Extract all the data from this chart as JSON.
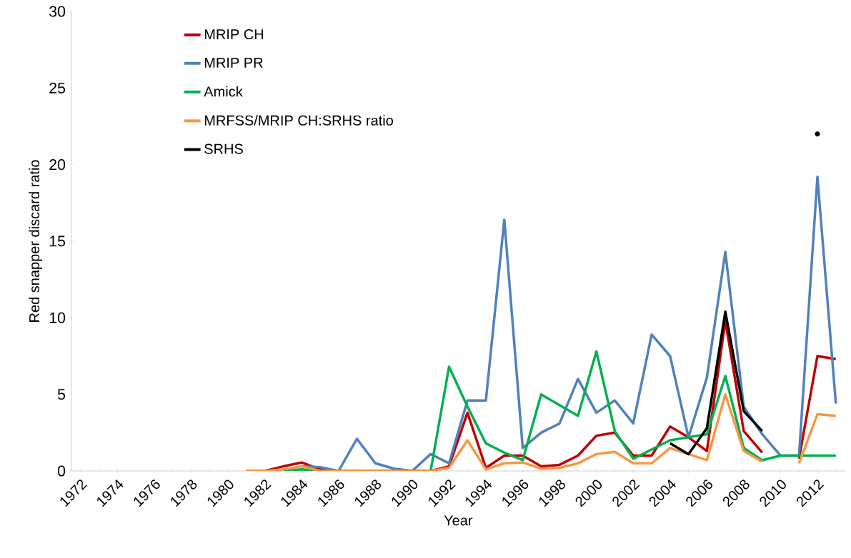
{
  "chart_data": {
    "type": "line",
    "xlabel": "Year",
    "ylabel": "Red snapper discard ratio",
    "categories": [
      "1972",
      null,
      "1974",
      null,
      "1976",
      null,
      "1978",
      null,
      "1980",
      null,
      "1982",
      null,
      "1984",
      null,
      "1986",
      null,
      "1988",
      null,
      "1990",
      null,
      "1992",
      null,
      "1994",
      null,
      "1996",
      null,
      "1998",
      null,
      "2000",
      null,
      "2002",
      null,
      "2004",
      null,
      "2006",
      null,
      "2008",
      null,
      "2010",
      null,
      "2012",
      null
    ],
    "ylim": [
      0,
      30
    ],
    "yticks": [
      0,
      5,
      10,
      15,
      20,
      25,
      30
    ],
    "grid": false,
    "legend": "top left",
    "marker": "none",
    "line_style": "solid",
    "series": [
      {
        "name": "MRIP CH",
        "color": "#c00000",
        "values": [
          null,
          null,
          null,
          null,
          null,
          null,
          null,
          null,
          null,
          0,
          0,
          0.3,
          0.55,
          0.1,
          0,
          0,
          0,
          0,
          0,
          0,
          0.3,
          3.8,
          0.2,
          1.0,
          1.0,
          0.3,
          0.4,
          1.0,
          2.3,
          2.5,
          1.0,
          1.0,
          2.9,
          2.2,
          1.3,
          9.8,
          2.6,
          1.2,
          null,
          0.8,
          7.5,
          7.3
        ]
      },
      {
        "name": "MRIP PR",
        "color": "#4f81bd",
        "values": [
          null,
          null,
          null,
          null,
          null,
          null,
          null,
          null,
          null,
          null,
          null,
          null,
          0.3,
          0.25,
          0,
          2.1,
          0.5,
          0.15,
          0,
          1.1,
          0.5,
          4.6,
          4.6,
          16.4,
          1.5,
          2.5,
          3.1,
          6.0,
          3.8,
          4.6,
          3.1,
          8.9,
          7.5,
          2.2,
          6.1,
          14.3,
          4.2,
          2.4,
          1.0,
          1.0,
          19.2,
          4.4
        ]
      },
      {
        "name": "Amick",
        "color": "#00b050",
        "values": [
          null,
          null,
          null,
          null,
          null,
          null,
          null,
          null,
          null,
          null,
          null,
          0,
          0.1,
          0,
          0,
          0,
          0,
          0,
          0,
          0,
          6.8,
          4.2,
          1.8,
          1.2,
          0.7,
          5.0,
          4.3,
          3.6,
          7.8,
          2.6,
          0.8,
          1.4,
          2.0,
          2.2,
          2.4,
          6.2,
          1.5,
          0.7,
          1.0,
          1.0,
          1.0,
          1.0
        ]
      },
      {
        "name": "MRFSS/MRIP CH:SRHS ratio",
        "color": "#f79646",
        "values": [
          null,
          null,
          null,
          null,
          null,
          null,
          null,
          null,
          null,
          0,
          0,
          0.1,
          0.3,
          0,
          0,
          0,
          0,
          0,
          0,
          0,
          0.2,
          2.0,
          0.1,
          0.5,
          0.55,
          0.15,
          0.2,
          0.5,
          1.1,
          1.25,
          0.5,
          0.5,
          1.5,
          1.1,
          0.7,
          5.0,
          1.3,
          0.6,
          null,
          0.5,
          3.7,
          3.6
        ]
      },
      {
        "name": "SRHS",
        "color": "#000000",
        "values": [
          null,
          null,
          null,
          null,
          null,
          null,
          null,
          null,
          null,
          null,
          null,
          null,
          null,
          null,
          null,
          null,
          null,
          null,
          null,
          null,
          null,
          null,
          null,
          null,
          null,
          null,
          null,
          null,
          null,
          null,
          null,
          null,
          1.8,
          1.1,
          2.8,
          10.4,
          3.9,
          2.6,
          null,
          null,
          22,
          null
        ]
      }
    ]
  }
}
